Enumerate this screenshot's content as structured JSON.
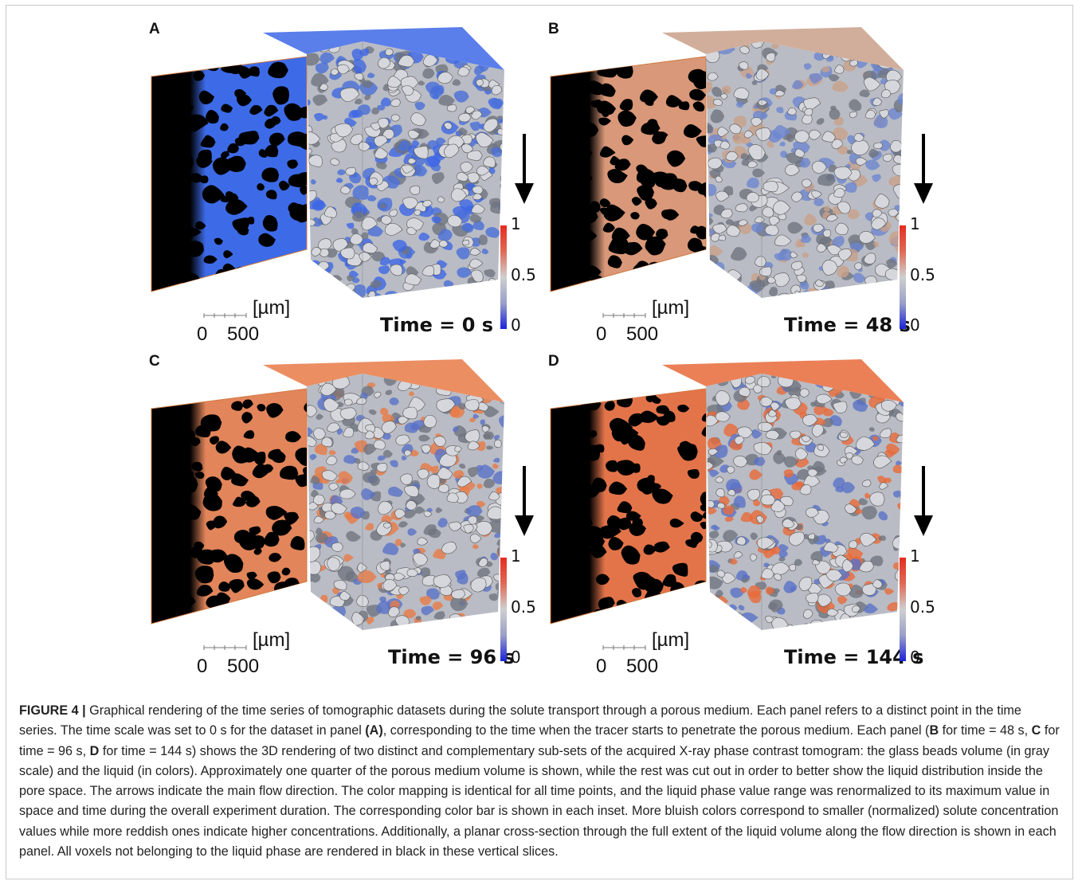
{
  "panels": [
    {
      "letter": "A",
      "time": "Time = 0 s",
      "tint": "#3d67e6",
      "tint_slice": "#3d6be8",
      "side_tint": "#4a6fd8"
    },
    {
      "letter": "B",
      "time": "Time = 48 s",
      "tint": "#c9a089",
      "tint_slice": "#d99879",
      "side_tint": "#6d86cf"
    },
    {
      "letter": "C",
      "time": "Time = 96 s",
      "tint": "#e87a46",
      "tint_slice": "#e2855a",
      "side_tint": "#5a72c8"
    },
    {
      "letter": "D",
      "time": "Time = 144 s",
      "tint": "#e86a3a",
      "tint_slice": "#e3744a",
      "side_tint": "#5a72c8"
    }
  ],
  "scale_bar": {
    "unit": "[µm]",
    "start": "0",
    "end": "500"
  },
  "colorbar": {
    "max": "1",
    "mid": "0.5",
    "min": "0",
    "colors": [
      "#1a23d8",
      "#9aa0c8",
      "#cfcfcf",
      "#e06a54",
      "#e52b20"
    ]
  },
  "caption": {
    "label": "FIGURE 4 |",
    "t1": " Graphical rendering of the time series of tomographic datasets during the solute transport through a porous medium. Each panel refers to a distinct point in the time series. The time scale was set to 0 s for the dataset in panel ",
    "ref_a": "(A)",
    "t2": ", corresponding to the time when the tracer starts to penetrate the porous medium. Each panel (",
    "ref_b": "B",
    "t3": " for time = 48 s, ",
    "ref_c": "C",
    "t4": " for time = 96 s, ",
    "ref_d": "D",
    "t5": " for time = 144 s) shows the 3D rendering of two distinct and complementary sub-sets of the acquired X-ray phase contrast tomogram: the glass beads volume (in gray scale) and the liquid (in colors). Approximately one quarter of the porous medium volume is shown, while the rest was cut out in order to better show the liquid distribution inside the pore space. The arrows indicate the main flow direction. The color mapping is identical for all time points, and the liquid phase value range was renormalized to its maximum value in space and time during the overall experiment duration. The corresponding color bar is shown in each inset. More bluish colors correspond to smaller (normalized) solute concentration values while more reddish ones indicate higher concentrations. Additionally, a planar cross-section through the full extent of the liquid volume along the flow direction is shown in each panel. All voxels not belonging to the liquid phase are rendered in black in these vertical slices."
  }
}
